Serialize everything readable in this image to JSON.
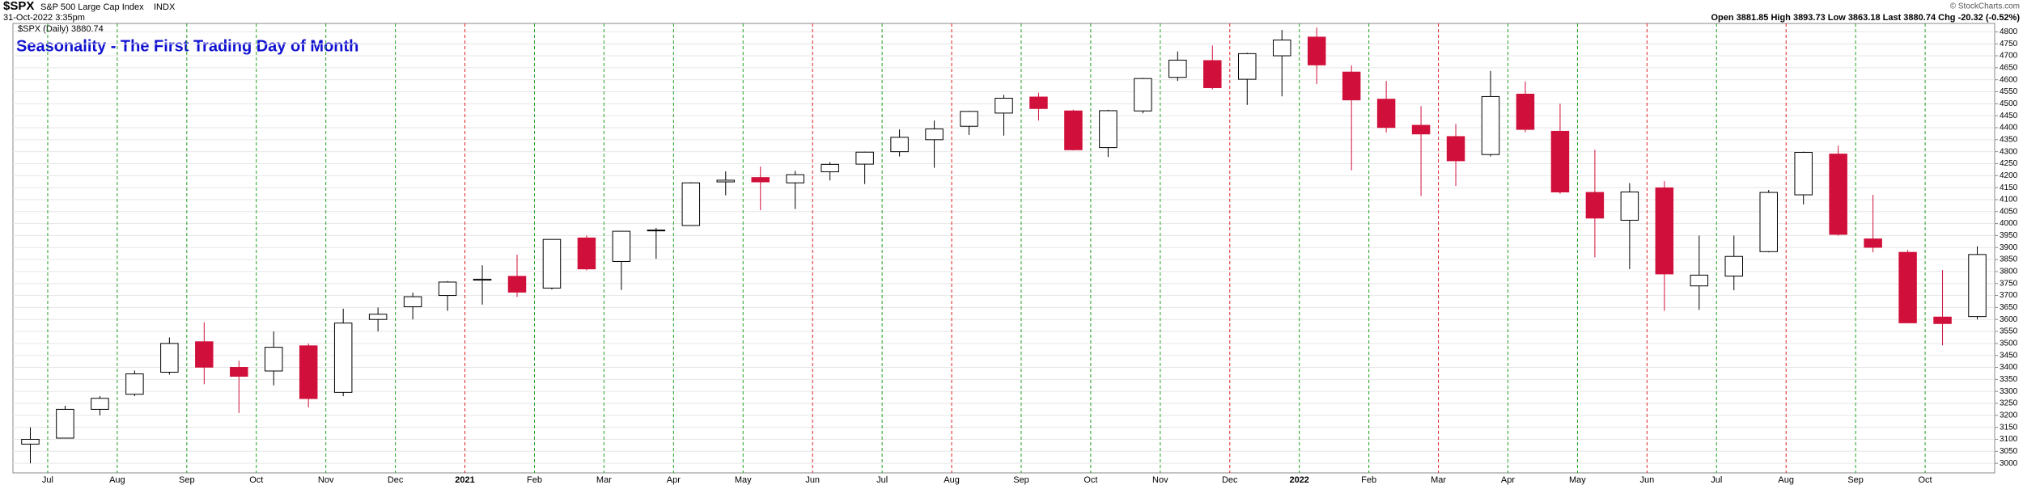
{
  "header": {
    "symbol": "$SPX",
    "name": "S&P 500 Large Cap Index",
    "exchange": "INDX",
    "timestamp": "31-Oct-2022 3:35pm",
    "quote": "Open 3881.85 High 3893.73 Low 3863.18 Last 3880.74 Chg -20.32 (-0.52%)",
    "credit": "© StockCharts.com"
  },
  "chart_data": {
    "type": "candlestick",
    "title": "Seasonality - The First Trading Day of Month",
    "legend": "$SPX (Daily) 3880.74",
    "categories": [
      null,
      "Jul",
      null,
      "Aug",
      null,
      "Sep",
      null,
      "Oct",
      null,
      "Nov",
      null,
      "Dec",
      null,
      "2021",
      null,
      "Feb",
      null,
      "Mar",
      null,
      "Apr",
      null,
      "May",
      null,
      "Jun",
      null,
      "Jul",
      null,
      "Aug",
      null,
      "Sep",
      null,
      "Oct",
      null,
      "Nov",
      null,
      "Dec",
      null,
      "2022",
      null,
      "Feb",
      null,
      "Mar",
      null,
      "Apr",
      null,
      "May",
      null,
      "Jun",
      null,
      "Jul",
      null,
      "Aug",
      null,
      "Sep",
      null,
      "Oct",
      null
    ],
    "open": [
      3080,
      3105,
      3225,
      3288,
      3380,
      3507,
      3400,
      3385,
      3490,
      3296,
      3600,
      3653,
      3700,
      3764,
      3780,
      3731,
      3940,
      3842,
      3970,
      3992,
      4174,
      4192,
      4170,
      4216,
      4248,
      4300,
      4350,
      4406,
      4461,
      4528,
      4470,
      4317,
      4470,
      4610,
      4680,
      4602,
      4700,
      4778,
      4632,
      4519,
      4410,
      4363,
      4288,
      4540,
      4385,
      4130,
      4014,
      4149,
      3740,
      3781,
      3883,
      4120,
      4290,
      3936,
      3880,
      3610,
      3612
    ],
    "high": [
      3150,
      3240,
      3280,
      3387,
      3525,
      3588,
      3428,
      3550,
      3500,
      3645,
      3650,
      3712,
      3760,
      3826,
      3870,
      3935,
      3950,
      3970,
      3982,
      4173,
      4218,
      4238,
      4220,
      4257,
      4300,
      4393,
      4430,
      4470,
      4537,
      4546,
      4475,
      4475,
      4608,
      4718,
      4743,
      4713,
      4808,
      4818,
      4660,
      4595,
      4490,
      4416,
      4637,
      4593,
      4500,
      4308,
      4169,
      4177,
      3950,
      3950,
      4140,
      4300,
      4325,
      4120,
      3890,
      3806,
      3905
    ],
    "low": [
      3000,
      3110,
      3200,
      3280,
      3370,
      3330,
      3210,
      3325,
      3233,
      3280,
      3550,
      3600,
      3636,
      3662,
      3694,
      3725,
      3805,
      3723,
      3853,
      3990,
      4118,
      4056,
      4061,
      4180,
      4165,
      4280,
      4233,
      4370,
      4367,
      4430,
      4305,
      4278,
      4460,
      4595,
      4560,
      4495,
      4531,
      4582,
      4222,
      4380,
      4115,
      4157,
      4280,
      4381,
      4124,
      3859,
      3810,
      3636,
      3640,
      3722,
      3880,
      4080,
      3950,
      3880,
      3585,
      3492,
      3600
    ],
    "close": [
      3100,
      3225,
      3271,
      3373,
      3500,
      3401,
      3363,
      3484,
      3270,
      3585,
      3622,
      3695,
      3756,
      3768,
      3714,
      3934,
      3811,
      3968,
      3973,
      4170,
      4181,
      4174,
      4204,
      4247,
      4298,
      4360,
      4395,
      4468,
      4523,
      4480,
      4308,
      4471,
      4605,
      4682,
      4567,
      4709,
      4766,
      4662,
      4516,
      4401,
      4374,
      4262,
      4530,
      4393,
      4132,
      4023,
      4132,
      3790,
      3785,
      3863,
      4130,
      4297,
      3955,
      3901,
      3586,
      3583,
      3871
    ],
    "up_color": "#000000",
    "down_color": "#d0103a",
    "month_line_colors": [
      "#22a022",
      "#22a022",
      "#22a022",
      "#22a022",
      "#22a022",
      "#22a022",
      "#e02020",
      "#22a022",
      "#22a022",
      "#22a022",
      "#22a022",
      "#e02020",
      "#22a022",
      "#e02020",
      "#22a022",
      "#22a022",
      "#22a022",
      "#e02020",
      "#22a022",
      "#22a022",
      "#e02020",
      "#22a022",
      "#22a022",
      "#e02020",
      "#22a022",
      "#e02020",
      "#22a022",
      "#22a022"
    ],
    "ylim": [
      2960,
      4835
    ],
    "yticks": [
      3000,
      3050,
      3100,
      3150,
      3200,
      3250,
      3300,
      3350,
      3400,
      3450,
      3500,
      3550,
      3600,
      3650,
      3700,
      3750,
      3800,
      3850,
      3900,
      3950,
      4000,
      4050,
      4100,
      4150,
      4200,
      4250,
      4300,
      4350,
      4400,
      4450,
      4500,
      4550,
      4600,
      4650,
      4700,
      4750,
      4800
    ],
    "grid": true
  }
}
